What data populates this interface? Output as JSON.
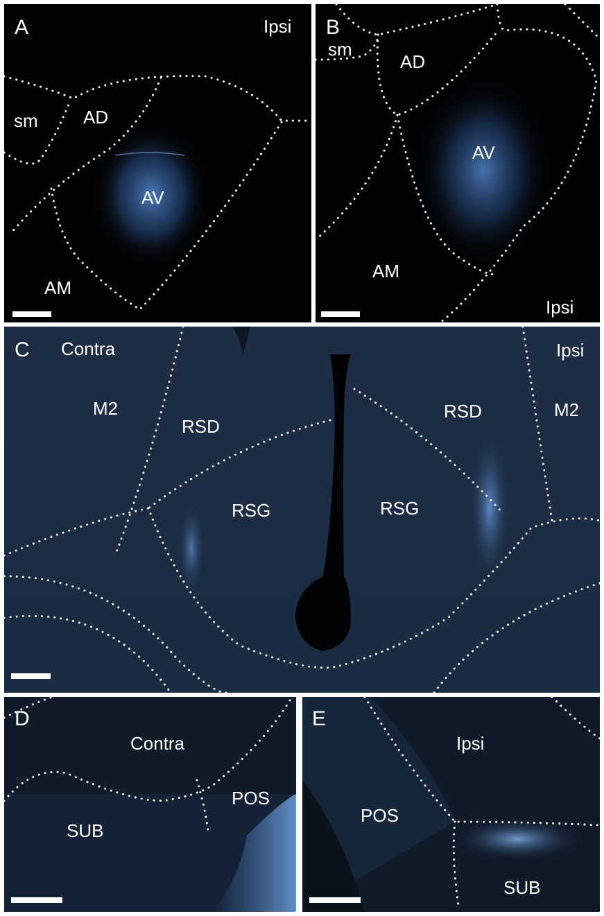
{
  "colors": {
    "background": "#020305",
    "signal": "#5a8fd8",
    "tissue": "#1f3550",
    "annotation": "#ffffff",
    "border": "#ffffff"
  },
  "panels": {
    "A": {
      "letter": "A",
      "labels": {
        "ipsi": "Ipsi",
        "sm": "sm",
        "ad": "AD",
        "av": "AV",
        "am": "AM"
      }
    },
    "B": {
      "letter": "B",
      "labels": {
        "sm": "sm",
        "ad": "AD",
        "av": "AV",
        "am": "AM",
        "ipsi": "Ipsi"
      }
    },
    "C": {
      "letter": "C",
      "labels": {
        "contra": "Contra",
        "ipsi": "Ipsi",
        "m2_left": "M2",
        "m2_right": "M2",
        "rsd_left": "RSD",
        "rsd_right": "RSD",
        "rsg_left": "RSG",
        "rsg_right": "RSG"
      }
    },
    "D": {
      "letter": "D",
      "labels": {
        "contra": "Contra",
        "pos": "POS",
        "sub": "SUB"
      }
    },
    "E": {
      "letter": "E",
      "labels": {
        "ipsi": "Ipsi",
        "pos": "POS",
        "sub": "SUB"
      }
    }
  }
}
